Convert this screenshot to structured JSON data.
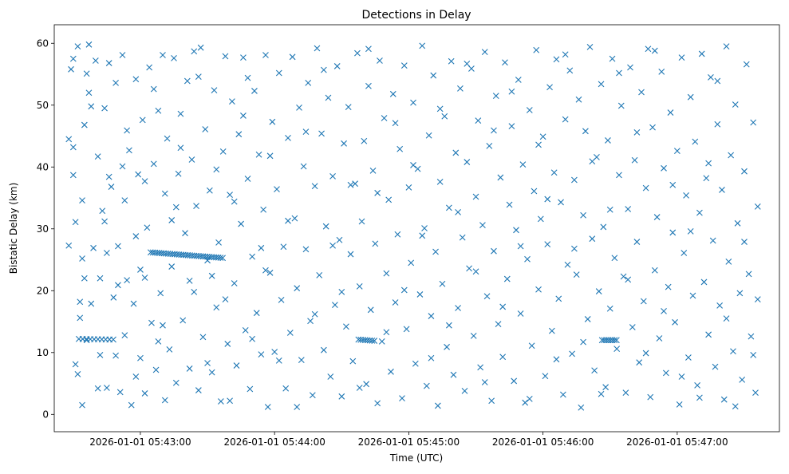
{
  "chart_data": {
    "type": "scatter",
    "title": "Detections in Delay",
    "xlabel": "Time (UTC)",
    "ylabel": "Bistatic Delay (km)",
    "x_units": "seconds after 2026-01-01 05:42:00 UTC",
    "xlim": [
      21.5,
      345.7
    ],
    "ylim": [
      -2.8,
      63.0
    ],
    "xticks": [
      {
        "value": 60,
        "label": "2026-01-01 05:43:00"
      },
      {
        "value": 120,
        "label": "2026-01-01 05:44:00"
      },
      {
        "value": 180,
        "label": "2026-01-01 05:45:00"
      },
      {
        "value": 240,
        "label": "2026-01-01 05:46:00"
      },
      {
        "value": 300,
        "label": "2026-01-01 05:47:00"
      }
    ],
    "yticks": [
      0,
      10,
      20,
      30,
      40,
      50,
      60
    ],
    "marker": "x",
    "color": "#1f77b4",
    "grid": false,
    "tracks": [
      {
        "t_start": 64.6,
        "t_end": 96.8,
        "y_start": 26.2,
        "y_end": 25.3,
        "n": 34
      },
      {
        "t_start": 32.5,
        "t_end": 47.9,
        "y_start": 12.2,
        "y_end": 12.1,
        "n": 10
      },
      {
        "t_start": 157.5,
        "t_end": 164.6,
        "y_start": 12.1,
        "y_end": 11.9,
        "n": 8
      },
      {
        "t_start": 266.4,
        "t_end": 272.9,
        "y_start": 12.0,
        "y_end": 12.0,
        "n": 8
      }
    ],
    "points": [
      [
        28,
        44.5
      ],
      [
        28,
        27.3
      ],
      [
        29,
        55.8
      ],
      [
        30,
        38.7
      ],
      [
        30,
        57.5
      ],
      [
        31,
        8.1
      ],
      [
        31,
        31.1
      ],
      [
        32,
        6.5
      ],
      [
        32,
        59.5
      ],
      [
        33,
        15.6
      ],
      [
        33,
        18.2
      ],
      [
        34,
        1.5
      ],
      [
        34,
        34.6
      ],
      [
        35,
        46.8
      ],
      [
        35,
        22
      ],
      [
        36,
        12
      ],
      [
        37,
        59.8
      ],
      [
        37,
        52
      ],
      [
        38,
        17.9
      ],
      [
        39,
        26.9
      ],
      [
        40,
        57.2
      ],
      [
        41,
        41.7
      ],
      [
        41,
        4.2
      ],
      [
        42,
        22
      ],
      [
        43,
        32.9
      ],
      [
        44,
        49.5
      ],
      [
        45,
        4.3
      ],
      [
        45,
        26.1
      ],
      [
        46,
        56.8
      ],
      [
        47,
        36.8
      ],
      [
        48,
        18.9
      ],
      [
        49,
        9.5
      ],
      [
        49,
        53.6
      ],
      [
        50,
        27.2
      ],
      [
        51,
        3.6
      ],
      [
        52,
        58.1
      ],
      [
        53,
        34.6
      ],
      [
        53,
        12.8
      ],
      [
        54,
        21.7
      ],
      [
        55,
        42.7
      ],
      [
        56,
        1.5
      ],
      [
        57,
        17.9
      ],
      [
        58,
        28.8
      ],
      [
        58,
        54.2
      ],
      [
        59,
        38.8
      ],
      [
        60,
        9.1
      ],
      [
        61,
        47.6
      ],
      [
        62,
        3.4
      ],
      [
        62,
        22.1
      ],
      [
        63,
        30.2
      ],
      [
        64,
        56.1
      ],
      [
        65,
        14.8
      ],
      [
        66,
        40.5
      ],
      [
        67,
        7.2
      ],
      [
        68,
        49.1
      ],
      [
        69,
        19.6
      ],
      [
        70,
        58.1
      ],
      [
        71,
        2.3
      ],
      [
        71,
        35.7
      ],
      [
        72,
        44.6
      ],
      [
        73,
        10.5
      ],
      [
        74,
        23.9
      ],
      [
        75,
        57.6
      ],
      [
        76,
        5.1
      ],
      [
        77,
        38.9
      ],
      [
        78,
        48.6
      ],
      [
        79,
        15.2
      ],
      [
        80,
        29.3
      ],
      [
        81,
        53.9
      ],
      [
        82,
        7.4
      ],
      [
        83,
        41.2
      ],
      [
        84,
        19.8
      ],
      [
        85,
        33.7
      ],
      [
        86,
        3.9
      ],
      [
        87,
        59.3
      ],
      [
        88,
        12.5
      ],
      [
        89,
        46.1
      ],
      [
        90,
        24.9
      ],
      [
        91,
        36.2
      ],
      [
        92,
        6.8
      ],
      [
        93,
        52.4
      ],
      [
        94,
        17.3
      ],
      [
        95,
        27.8
      ],
      [
        96,
        2.1
      ],
      [
        97,
        42.5
      ],
      [
        98,
        57.9
      ],
      [
        99,
        11.4
      ],
      [
        100,
        35.5
      ],
      [
        101,
        50.6
      ],
      [
        102,
        21.2
      ],
      [
        103,
        7.9
      ],
      [
        104,
        45.3
      ],
      [
        105,
        30.8
      ],
      [
        106,
        57.7
      ],
      [
        107,
        13.6
      ],
      [
        108,
        38.1
      ],
      [
        109,
        4.1
      ],
      [
        110,
        25.5
      ],
      [
        111,
        52.3
      ],
      [
        112,
        16.4
      ],
      [
        113,
        42.0
      ],
      [
        114,
        9.7
      ],
      [
        115,
        33.1
      ],
      [
        116,
        58.1
      ],
      [
        117,
        1.2
      ],
      [
        118,
        22.9
      ],
      [
        119,
        47.3
      ],
      [
        120,
        10.1
      ],
      [
        121,
        36.4
      ],
      [
        122,
        55.2
      ],
      [
        123,
        18.5
      ],
      [
        124,
        27.1
      ],
      [
        125,
        4.2
      ],
      [
        126,
        44.7
      ],
      [
        127,
        13.2
      ],
      [
        128,
        57.8
      ],
      [
        129,
        31.7
      ],
      [
        130,
        20.4
      ],
      [
        131,
        49.6
      ],
      [
        132,
        8.8
      ],
      [
        133,
        40.1
      ],
      [
        134,
        26.7
      ],
      [
        135,
        53.6
      ],
      [
        136,
        15.1
      ],
      [
        137,
        3.1
      ],
      [
        138,
        36.9
      ],
      [
        139,
        59.2
      ],
      [
        140,
        22.5
      ],
      [
        141,
        45.4
      ],
      [
        142,
        10.4
      ],
      [
        143,
        30.4
      ],
      [
        144,
        51.2
      ],
      [
        145,
        6.1
      ],
      [
        146,
        38.5
      ],
      [
        147,
        17.7
      ],
      [
        148,
        56.3
      ],
      [
        149,
        28.2
      ],
      [
        150,
        2.9
      ],
      [
        151,
        43.8
      ],
      [
        152,
        14.2
      ],
      [
        153,
        49.7
      ],
      [
        154,
        25.9
      ],
      [
        155,
        8.6
      ],
      [
        156,
        37.3
      ],
      [
        157,
        58.4
      ],
      [
        158,
        20.7
      ],
      [
        159,
        31.2
      ],
      [
        160,
        44.2
      ],
      [
        161,
        4.9
      ],
      [
        162,
        53.1
      ],
      [
        163,
        16.9
      ],
      [
        164,
        39.4
      ],
      [
        165,
        27.6
      ],
      [
        166,
        1.8
      ],
      [
        167,
        57.2
      ],
      [
        168,
        11.8
      ],
      [
        169,
        47.9
      ],
      [
        170,
        22.8
      ],
      [
        171,
        34.7
      ],
      [
        172,
        6.9
      ],
      [
        173,
        51.8
      ],
      [
        174,
        18.1
      ],
      [
        175,
        29.1
      ],
      [
        176,
        42.9
      ],
      [
        177,
        2.6
      ],
      [
        178,
        56.4
      ],
      [
        179,
        13.8
      ],
      [
        180,
        36.7
      ],
      [
        181,
        24.5
      ],
      [
        182,
        50.4
      ],
      [
        183,
        8.2
      ],
      [
        184,
        39.7
      ],
      [
        185,
        19.4
      ],
      [
        186,
        59.6
      ],
      [
        187,
        30.1
      ],
      [
        188,
        4.6
      ],
      [
        189,
        45.1
      ],
      [
        190,
        15.9
      ],
      [
        191,
        54.8
      ],
      [
        192,
        26.3
      ],
      [
        193,
        1.4
      ],
      [
        194,
        37.6
      ],
      [
        195,
        21.1
      ],
      [
        196,
        48.2
      ],
      [
        197,
        10.9
      ],
      [
        198,
        33.4
      ],
      [
        199,
        57.1
      ],
      [
        200,
        6.4
      ],
      [
        201,
        42.3
      ],
      [
        202,
        17.2
      ],
      [
        203,
        52.7
      ],
      [
        204,
        28.6
      ],
      [
        205,
        3.8
      ],
      [
        206,
        40.8
      ],
      [
        207,
        23.6
      ],
      [
        208,
        55.9
      ],
      [
        209,
        12.7
      ],
      [
        210,
        35.2
      ],
      [
        211,
        47.5
      ],
      [
        212,
        7.6
      ],
      [
        213,
        30.6
      ],
      [
        214,
        58.6
      ],
      [
        215,
        19.1
      ],
      [
        216,
        43.4
      ],
      [
        217,
        2.2
      ],
      [
        218,
        26.4
      ],
      [
        219,
        51.5
      ],
      [
        220,
        14.6
      ],
      [
        221,
        38.3
      ],
      [
        222,
        9.3
      ],
      [
        223,
        56.9
      ],
      [
        224,
        21.9
      ],
      [
        225,
        33.9
      ],
      [
        226,
        46.6
      ],
      [
        227,
        5.4
      ],
      [
        228,
        29.8
      ],
      [
        229,
        54.1
      ],
      [
        230,
        16.3
      ],
      [
        231,
        40.4
      ],
      [
        232,
        1.9
      ],
      [
        233,
        25.1
      ],
      [
        234,
        49.2
      ],
      [
        235,
        11.1
      ],
      [
        236,
        36.1
      ],
      [
        237,
        58.9
      ],
      [
        238,
        20.2
      ],
      [
        239,
        31.6
      ],
      [
        240,
        44.9
      ],
      [
        241,
        6.2
      ],
      [
        242,
        27.5
      ],
      [
        243,
        52.9
      ],
      [
        244,
        13.5
      ],
      [
        245,
        39.1
      ],
      [
        246,
        57.4
      ],
      [
        247,
        18.7
      ],
      [
        248,
        34.3
      ],
      [
        249,
        3.2
      ],
      [
        250,
        47.7
      ],
      [
        251,
        24.2
      ],
      [
        252,
        55.6
      ],
      [
        253,
        9.8
      ],
      [
        254,
        37.9
      ],
      [
        255,
        22.6
      ],
      [
        256,
        50.9
      ],
      [
        257,
        1.1
      ],
      [
        258,
        32.2
      ],
      [
        259,
        45.8
      ],
      [
        260,
        15.4
      ],
      [
        261,
        59.4
      ],
      [
        262,
        28.4
      ],
      [
        263,
        7.1
      ],
      [
        264,
        41.6
      ],
      [
        265,
        19.9
      ],
      [
        266,
        53.4
      ],
      [
        267,
        30.3
      ],
      [
        268,
        4.4
      ],
      [
        269,
        44.3
      ],
      [
        270,
        17.1
      ],
      [
        271,
        57.5
      ],
      [
        272,
        25.3
      ],
      [
        273,
        10.6
      ],
      [
        274,
        38.7
      ],
      [
        275,
        49.9
      ],
      [
        276,
        22.3
      ],
      [
        277,
        3.5
      ],
      [
        278,
        33.2
      ],
      [
        279,
        56.1
      ],
      [
        280,
        14.1
      ],
      [
        281,
        41.1
      ],
      [
        282,
        27.9
      ],
      [
        283,
        8.4
      ],
      [
        284,
        52.1
      ],
      [
        285,
        18.3
      ],
      [
        286,
        36.6
      ],
      [
        287,
        59.1
      ],
      [
        288,
        2.8
      ],
      [
        289,
        46.4
      ],
      [
        290,
        23.3
      ],
      [
        291,
        31.9
      ],
      [
        292,
        12.3
      ],
      [
        293,
        55.4
      ],
      [
        294,
        39.8
      ],
      [
        295,
        6.7
      ],
      [
        296,
        20.6
      ],
      [
        297,
        48.8
      ],
      [
        298,
        29.4
      ],
      [
        299,
        14.9
      ],
      [
        300,
        42.6
      ],
      [
        301,
        1.6
      ],
      [
        302,
        57.7
      ],
      [
        303,
        26.1
      ],
      [
        304,
        35.4
      ],
      [
        305,
        9.2
      ],
      [
        306,
        51.3
      ],
      [
        307,
        19.2
      ],
      [
        308,
        44.1
      ],
      [
        309,
        4.7
      ],
      [
        310,
        32.6
      ],
      [
        311,
        58.3
      ],
      [
        312,
        21.4
      ],
      [
        313,
        38.2
      ],
      [
        314,
        12.9
      ],
      [
        315,
        54.5
      ],
      [
        316,
        28.1
      ],
      [
        317,
        7.7
      ],
      [
        318,
        46.9
      ],
      [
        319,
        17.6
      ],
      [
        320,
        36.3
      ],
      [
        321,
        2.4
      ],
      [
        322,
        59.5
      ],
      [
        323,
        24.7
      ],
      [
        324,
        41.9
      ],
      [
        325,
        10.2
      ],
      [
        326,
        50.1
      ],
      [
        327,
        30.9
      ],
      [
        328,
        19.6
      ],
      [
        329,
        5.6
      ],
      [
        330,
        39.3
      ],
      [
        331,
        56.6
      ],
      [
        332,
        22.7
      ],
      [
        333,
        12.6
      ],
      [
        334,
        47.2
      ],
      [
        335,
        3.5
      ],
      [
        336,
        33.6
      ],
      [
        334,
        9.6
      ],
      [
        336,
        18.6
      ],
      [
        330,
        27.9
      ],
      [
        326,
        1.3
      ],
      [
        322,
        15.5
      ],
      [
        318,
        53.9
      ],
      [
        314,
        40.6
      ],
      [
        310,
        2.7
      ],
      [
        306,
        29.6
      ],
      [
        302,
        6.1
      ],
      [
        298,
        37.1
      ],
      [
        294,
        16.7
      ],
      [
        290,
        58.8
      ],
      [
        286,
        9.9
      ],
      [
        282,
        45.6
      ],
      [
        278,
        21.8
      ],
      [
        274,
        55.2
      ],
      [
        270,
        33.1
      ],
      [
        266,
        3.3
      ],
      [
        262,
        40.9
      ],
      [
        258,
        11.7
      ],
      [
        254,
        26.8
      ],
      [
        250,
        58.2
      ],
      [
        246,
        8.9
      ],
      [
        242,
        34.8
      ],
      [
        238,
        43.6
      ],
      [
        234,
        2.5
      ],
      [
        230,
        27.2
      ],
      [
        226,
        52.2
      ],
      [
        222,
        17.4
      ],
      [
        218,
        45.9
      ],
      [
        214,
        5.2
      ],
      [
        210,
        23.1
      ],
      [
        206,
        56.7
      ],
      [
        202,
        32.7
      ],
      [
        198,
        14.4
      ],
      [
        194,
        49.4
      ],
      [
        190,
        9.1
      ],
      [
        186,
        28.9
      ],
      [
        182,
        40.3
      ],
      [
        178,
        20.1
      ],
      [
        174,
        47.1
      ],
      [
        170,
        13.3
      ],
      [
        166,
        35.8
      ],
      [
        162,
        59.1
      ],
      [
        158,
        4.3
      ],
      [
        154,
        37.1
      ],
      [
        150,
        19.8
      ],
      [
        146,
        27.3
      ],
      [
        142,
        55.7
      ],
      [
        138,
        16.2
      ],
      [
        134,
        45.7
      ],
      [
        130,
        1.2
      ],
      [
        126,
        31.3
      ],
      [
        122,
        8.7
      ],
      [
        118,
        41.8
      ],
      [
        114,
        26.9
      ],
      [
        110,
        12.2
      ],
      [
        106,
        48.3
      ],
      [
        102,
        34.4
      ],
      [
        98,
        18.6
      ],
      [
        94,
        39.6
      ],
      [
        90,
        8.3
      ],
      [
        86,
        54.6
      ],
      [
        82,
        21.6
      ],
      [
        78,
        43.1
      ],
      [
        74,
        31.4
      ],
      [
        70,
        14.4
      ],
      [
        66,
        52.6
      ],
      [
        62,
        37.7
      ],
      [
        58,
        6.1
      ],
      [
        54,
        45.9
      ],
      [
        50,
        20.9
      ],
      [
        46,
        38.4
      ],
      [
        42,
        9.6
      ],
      [
        38,
        49.8
      ],
      [
        34,
        25.2
      ],
      [
        30,
        43.2
      ],
      [
        36,
        55.1
      ],
      [
        44,
        31.2
      ],
      [
        52,
        40.1
      ],
      [
        60,
        23.4
      ],
      [
        68,
        11.8
      ],
      [
        76,
        33.5
      ],
      [
        84,
        58.7
      ],
      [
        92,
        22.4
      ],
      [
        100,
        2.2
      ],
      [
        108,
        54.4
      ],
      [
        116,
        23.3
      ]
    ]
  }
}
